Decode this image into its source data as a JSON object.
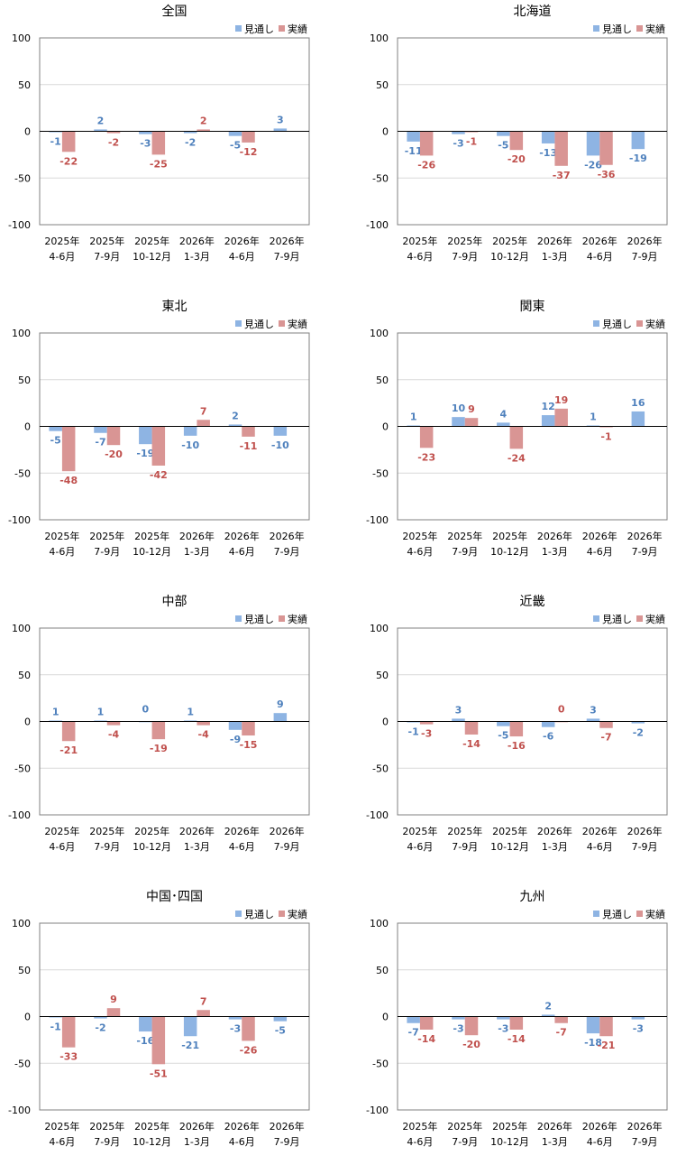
{
  "legend": {
    "forecast": "見通し",
    "actual": "実績"
  },
  "colors": {
    "forecast": "#8eb4e3",
    "actual": "#d99594",
    "forecast_label": "#4f81bd",
    "actual_label": "#c0504d",
    "grid": "#d9d9d9",
    "axis": "#000000"
  },
  "categories": [
    {
      "year": "2025年",
      "period": "4-6月"
    },
    {
      "year": "2025年",
      "period": "7-9月"
    },
    {
      "year": "2025年",
      "period": "10-12月"
    },
    {
      "year": "2026年",
      "period": "1-3月"
    },
    {
      "year": "2026年",
      "period": "4-6月"
    },
    {
      "year": "2026年",
      "period": "7-9月"
    }
  ],
  "chart_data": [
    {
      "type": "bar",
      "title": "全国",
      "ylim": [
        -100,
        100
      ],
      "yticks": [
        100,
        50,
        0,
        -50,
        -100
      ],
      "grid": true,
      "legend": "top-right",
      "series": [
        {
          "name": "見通し",
          "values": [
            -1,
            2,
            -3,
            -2,
            -5,
            3
          ]
        },
        {
          "name": "実績",
          "values": [
            -22,
            -2,
            -25,
            2,
            -12,
            null
          ]
        }
      ]
    },
    {
      "type": "bar",
      "title": "北海道",
      "ylim": [
        -100,
        100
      ],
      "yticks": [
        100,
        50,
        0,
        -50,
        -100
      ],
      "grid": true,
      "legend": "top-right",
      "series": [
        {
          "name": "見通し",
          "values": [
            -11,
            -3,
            -5,
            -13,
            -26,
            -19
          ]
        },
        {
          "name": "実績",
          "values": [
            -26,
            -1,
            -20,
            -37,
            -36,
            null
          ]
        }
      ]
    },
    {
      "type": "bar",
      "title": "東北",
      "ylim": [
        -100,
        100
      ],
      "yticks": [
        100,
        50,
        0,
        -50,
        -100
      ],
      "grid": true,
      "legend": "top-right",
      "series": [
        {
          "name": "見通し",
          "values": [
            -5,
            -7,
            -19,
            -10,
            2,
            -10
          ]
        },
        {
          "name": "実績",
          "values": [
            -48,
            -20,
            -42,
            7,
            -11,
            null
          ]
        }
      ]
    },
    {
      "type": "bar",
      "title": "関東",
      "ylim": [
        -100,
        100
      ],
      "yticks": [
        100,
        50,
        0,
        -50,
        -100
      ],
      "grid": true,
      "legend": "top-right",
      "series": [
        {
          "name": "見通し",
          "values": [
            1,
            10,
            4,
            12,
            1,
            16
          ]
        },
        {
          "name": "実績",
          "values": [
            -23,
            9,
            -24,
            19,
            -1,
            null
          ]
        }
      ]
    },
    {
      "type": "bar",
      "title": "中部",
      "ylim": [
        -100,
        100
      ],
      "yticks": [
        100,
        50,
        0,
        -50,
        -100
      ],
      "grid": true,
      "legend": "top-right",
      "series": [
        {
          "name": "見通し",
          "values": [
            1,
            1,
            0,
            1,
            -9,
            9
          ]
        },
        {
          "name": "実績",
          "values": [
            -21,
            -4,
            -19,
            -4,
            -15,
            null
          ]
        }
      ]
    },
    {
      "type": "bar",
      "title": "近畿",
      "ylim": [
        -100,
        100
      ],
      "yticks": [
        100,
        50,
        0,
        -50,
        -100
      ],
      "grid": true,
      "legend": "top-right",
      "series": [
        {
          "name": "見通し",
          "values": [
            -1,
            3,
            -5,
            -6,
            3,
            -2
          ]
        },
        {
          "name": "実績",
          "values": [
            -3,
            -14,
            -16,
            0,
            -7,
            null
          ]
        }
      ]
    },
    {
      "type": "bar",
      "title": "中国･四国",
      "ylim": [
        -100,
        100
      ],
      "yticks": [
        100,
        50,
        0,
        -50,
        -100
      ],
      "grid": true,
      "legend": "top-right",
      "series": [
        {
          "name": "見通し",
          "values": [
            -1,
            -2,
            -16,
            -21,
            -3,
            -5
          ]
        },
        {
          "name": "実績",
          "values": [
            -33,
            9,
            -51,
            7,
            -26,
            null
          ]
        }
      ]
    },
    {
      "type": "bar",
      "title": "九州",
      "ylim": [
        -100,
        100
      ],
      "yticks": [
        100,
        50,
        0,
        -50,
        -100
      ],
      "grid": true,
      "legend": "top-right",
      "series": [
        {
          "name": "見通し",
          "values": [
            -7,
            -3,
            -3,
            2,
            -18,
            -3
          ]
        },
        {
          "name": "実績",
          "values": [
            -14,
            -20,
            -14,
            -7,
            -21,
            null
          ]
        }
      ]
    }
  ]
}
